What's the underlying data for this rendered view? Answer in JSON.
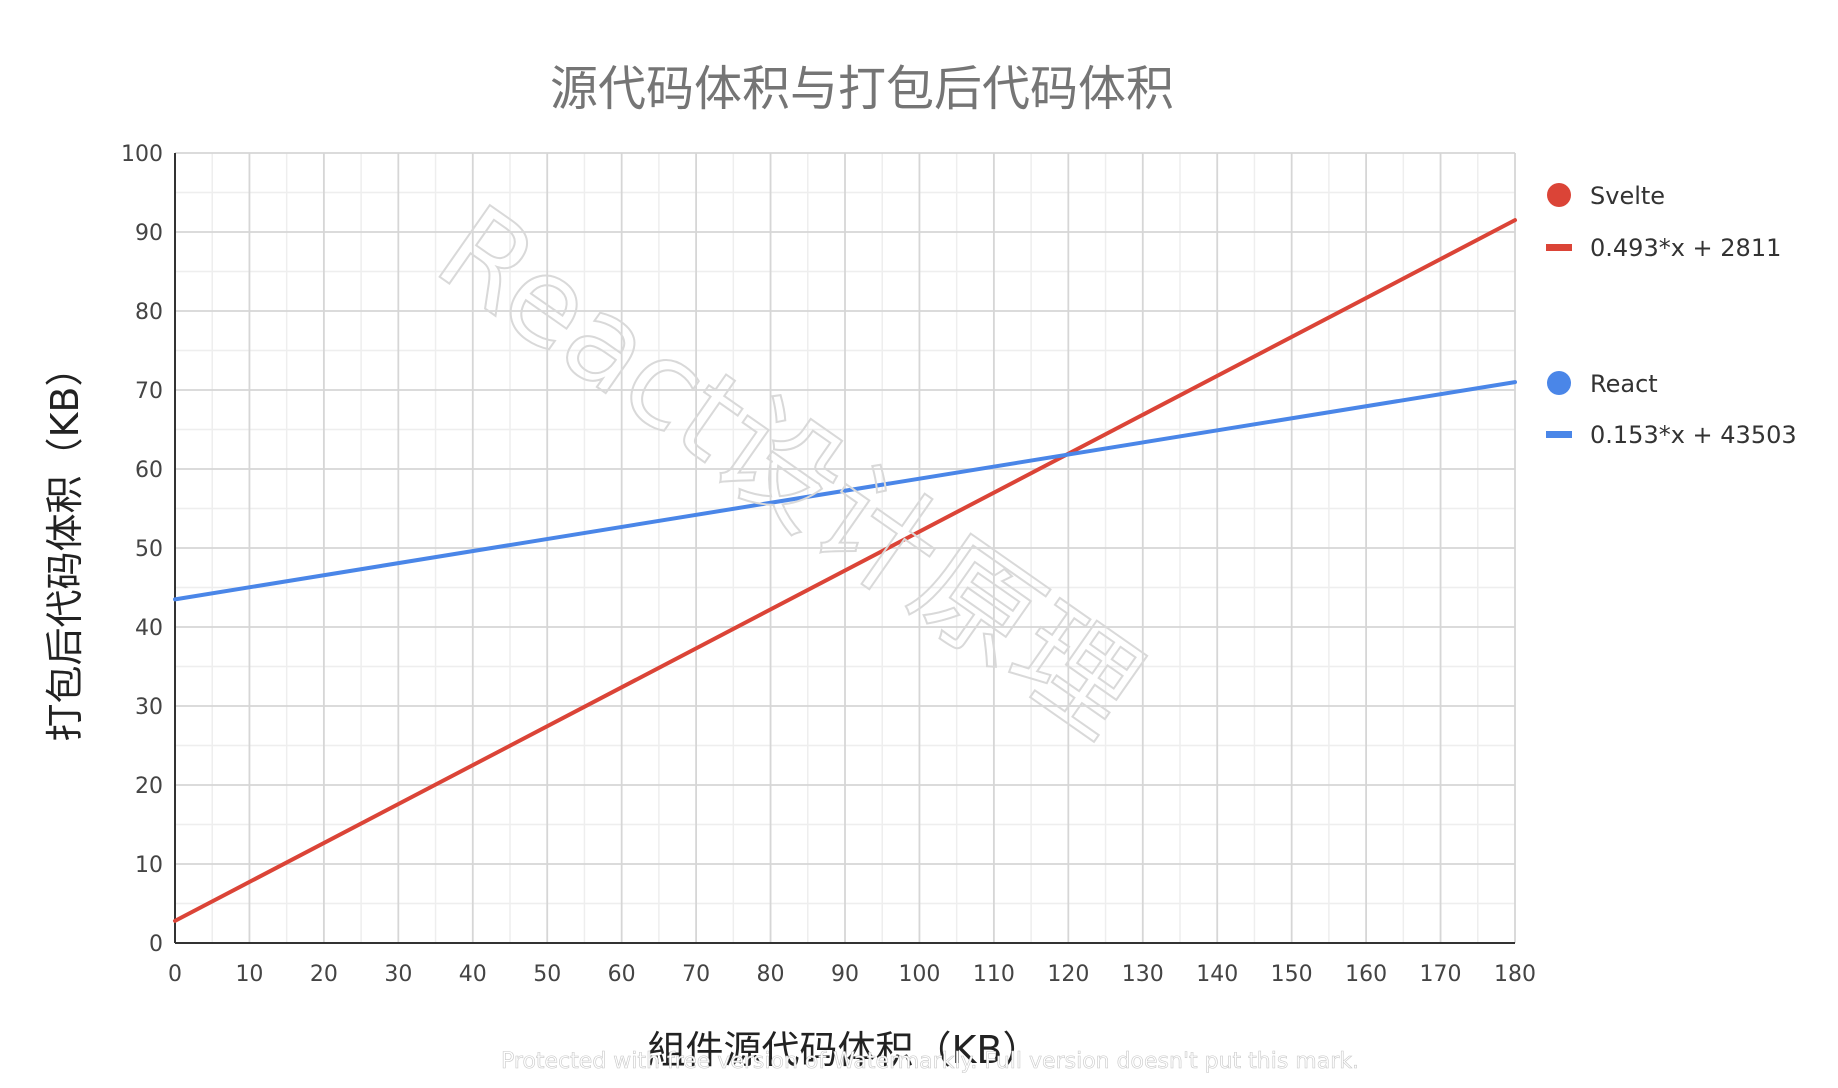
{
  "chart_data": {
    "type": "line",
    "title": "源代码体积与打包后代码体积",
    "xlabel": "組件源代码体积（KB）",
    "ylabel": "打包后代码体积（KB）",
    "xlim": [
      0,
      180
    ],
    "ylim": [
      0,
      100
    ],
    "x_ticks": [
      0,
      10,
      20,
      30,
      40,
      50,
      60,
      70,
      80,
      90,
      100,
      110,
      120,
      130,
      140,
      150,
      160,
      170,
      180
    ],
    "y_ticks": [
      0,
      10,
      20,
      30,
      40,
      50,
      60,
      70,
      80,
      90,
      100
    ],
    "grid": true,
    "legend_position": "right",
    "series": [
      {
        "name": "Svelte",
        "trendline_label": "0.493*x + 2811",
        "color": "#db4437",
        "x": [
          0,
          180
        ],
        "y": [
          2.8,
          91.5
        ]
      },
      {
        "name": "React",
        "trendline_label": "0.153*x + 43503",
        "color": "#4a86e8",
        "x": [
          0,
          180
        ],
        "y": [
          43.5,
          71.0
        ]
      }
    ]
  },
  "watermark": {
    "text": "React设计原理",
    "protected_notice": "Protected with free version of Watermarkly. Full version doesn't put this mark."
  }
}
